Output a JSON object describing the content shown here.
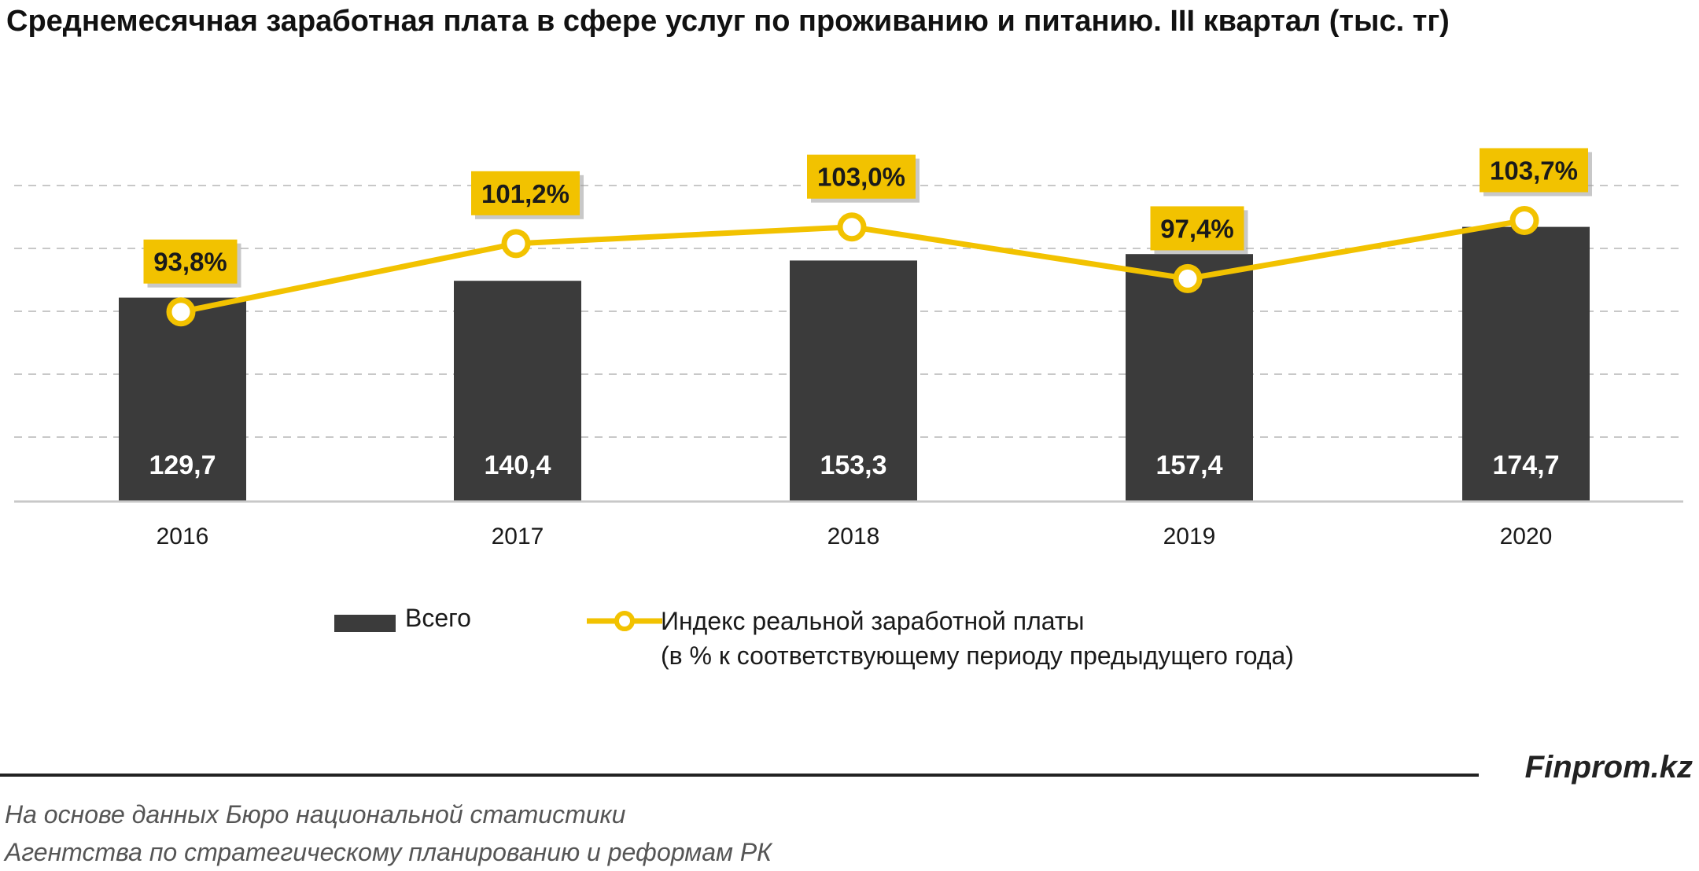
{
  "title": "Среднемесячная заработная плата в сфере услуг по проживанию и питанию. III квартал (тыс. тг)",
  "chart_data": {
    "type": "bar",
    "categories": [
      "2016",
      "2017",
      "2018",
      "2019",
      "2020"
    ],
    "series": [
      {
        "name": "Всего",
        "type": "bar",
        "values": [
          129.7,
          140.4,
          153.3,
          157.4,
          174.7
        ],
        "labels": [
          "129,7",
          "140,4",
          "153,3",
          "157,4",
          "174,7"
        ],
        "color": "#3b3b3b"
      },
      {
        "name": "Индекс реальной заработной платы",
        "name_line2": "(в % к соответствующему периоду предыдущего года)",
        "type": "line",
        "values": [
          93.8,
          101.2,
          103.0,
          97.4,
          103.7
        ],
        "labels": [
          "93,8%",
          "101,2%",
          "103,0%",
          "97,4%",
          "103,7%"
        ],
        "color": "#f2c200"
      }
    ],
    "bar_ylim": [
      0,
      200
    ],
    "line_ylim": [
      85,
      108
    ],
    "grid": true,
    "legend_position": "bottom"
  },
  "footer": {
    "brand": "Finprom.kz",
    "source_line1": "На основе данных  Бюро национальной  статистики",
    "source_line2": "Агентства по стратегическому планированию и реформам  РК"
  }
}
